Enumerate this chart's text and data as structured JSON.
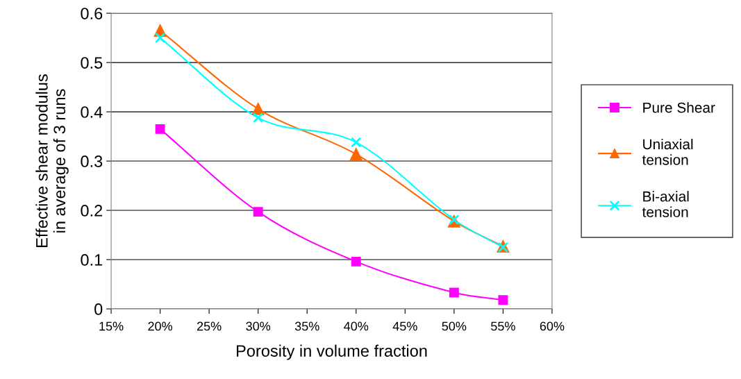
{
  "chart_data": {
    "type": "line",
    "xlabel": "Porosity in volume fraction",
    "ylabel": "Effective shear modulus\nin average of 3 runs",
    "x": [
      20,
      30,
      40,
      50,
      55
    ],
    "series": [
      {
        "name": "Pure Shear",
        "color": "#ff00ff",
        "marker": "square",
        "values": [
          0.365,
          0.197,
          0.096,
          0.033,
          0.018
        ]
      },
      {
        "name": "Uniaxial\ntension",
        "color": "#ff6600",
        "marker": "triangle",
        "values": [
          0.565,
          0.406,
          0.314,
          0.178,
          0.127
        ]
      },
      {
        "name": "Bi-axial\ntension",
        "color": "#00ffff",
        "marker": "cross",
        "values": [
          0.55,
          0.388,
          0.338,
          0.181,
          0.125
        ]
      }
    ],
    "xlim": [
      15,
      60
    ],
    "xticks": [
      {
        "value": 15,
        "label": "15%"
      },
      {
        "value": 20,
        "label": "20%"
      },
      {
        "value": 25,
        "label": "25%"
      },
      {
        "value": 30,
        "label": "30%"
      },
      {
        "value": 35,
        "label": "35%"
      },
      {
        "value": 40,
        "label": "40%"
      },
      {
        "value": 45,
        "label": "45%"
      },
      {
        "value": 50,
        "label": "50%"
      },
      {
        "value": 55,
        "label": "55%"
      },
      {
        "value": 60,
        "label": "60%"
      }
    ],
    "ylim": [
      0,
      0.6
    ],
    "yticks": [
      0,
      0.1,
      0.2,
      0.3,
      0.4,
      0.5,
      0.6
    ],
    "grid": "y",
    "legend": "right",
    "line_style": "solid"
  }
}
